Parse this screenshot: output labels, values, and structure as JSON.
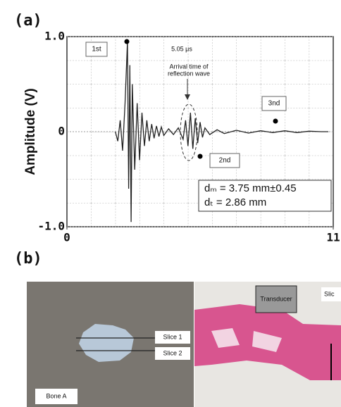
{
  "chart_data": {
    "type": "line",
    "panel_label": "(a)",
    "ylabel": "Amplitude (V)",
    "x": [
      2.0,
      2.1,
      2.2,
      2.3,
      2.4,
      2.5,
      2.55,
      2.6,
      2.65,
      2.7,
      2.8,
      2.9,
      3.0,
      3.1,
      3.2,
      3.3,
      3.4,
      3.5,
      3.6,
      3.7,
      3.8,
      3.9,
      4.0,
      4.2,
      4.4,
      4.6,
      4.8,
      4.9,
      5.0,
      5.1,
      5.2,
      5.3,
      5.4,
      5.5,
      5.6,
      5.7,
      5.9,
      6.2,
      6.5,
      7.0,
      7.5,
      8.0,
      8.5,
      9.0,
      9.5,
      10.0,
      10.5,
      10.8
    ],
    "values": [
      0,
      -0.1,
      0.12,
      -0.2,
      0.3,
      0.95,
      -0.6,
      0.7,
      -0.95,
      0.5,
      -0.4,
      0.3,
      -0.3,
      0.2,
      -0.15,
      0.12,
      -0.1,
      0.08,
      -0.07,
      0.06,
      -0.05,
      0.05,
      -0.04,
      0.03,
      -0.03,
      0.04,
      -0.08,
      0.12,
      -0.15,
      0.2,
      -0.18,
      0.14,
      -0.12,
      0.1,
      -0.06,
      0.04,
      -0.03,
      0.02,
      -0.02,
      0.015,
      -0.015,
      0.01,
      -0.01,
      0.01,
      -0.01,
      0.005,
      0,
      0
    ],
    "color": "#222222",
    "xlim": [
      0,
      11
    ],
    "xticks": [
      0,
      11
    ],
    "ylim": [
      -1,
      1
    ],
    "yticks": [
      {
        "value": -1,
        "label": "-1.0"
      },
      0,
      {
        "value": 1,
        "label": "1.0"
      }
    ],
    "grid": true,
    "annotations": [
      "1st",
      "2nd",
      "3nd",
      "5.05 μs",
      "Arrival time of",
      "reflection wave",
      "dₘ = 3.75 mm±0.45",
      "dₜ = 2.86 mm"
    ]
  },
  "panel_b": {
    "label": "(b)",
    "left_photo": {
      "slice_1": "Slice 1",
      "slice_2": "Slice 2",
      "sample": "Bone A"
    },
    "right_photo": {
      "transducer": "Transducer",
      "slice": "Slic"
    }
  }
}
